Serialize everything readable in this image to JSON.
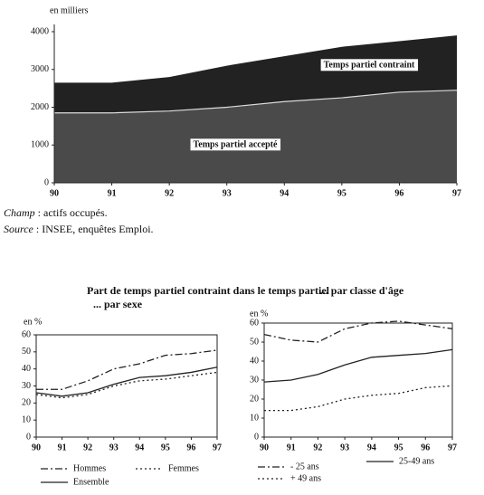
{
  "heading": "Part de temps partiel contraint dans le temps partiel",
  "notes": [
    {
      "label": "Champ",
      "text": ": actifs occupés."
    },
    {
      "label": "Source",
      "text": ": INSEE, enquêtes Emploi."
    }
  ],
  "chart_data": [
    {
      "type": "stacked-area",
      "ylabel": "en milliers",
      "x": [
        90,
        91,
        92,
        93,
        94,
        95,
        96,
        97
      ],
      "xlim": [
        90,
        97
      ],
      "xticks": [
        90,
        91,
        92,
        93,
        94,
        95,
        96,
        97
      ],
      "ylim": [
        0,
        4000
      ],
      "yticks": [
        0,
        1000,
        2000,
        3000,
        4000
      ],
      "series": [
        {
          "name": "Temps partiel accepté",
          "color": "#4a4a4a",
          "values": [
            1850,
            1850,
            1900,
            2000,
            2150,
            2250,
            2400,
            2450
          ]
        },
        {
          "name": "Temps partiel contraint",
          "color": "#222222",
          "values": [
            800,
            800,
            900,
            1100,
            1200,
            1350,
            1350,
            1450
          ]
        }
      ]
    },
    {
      "type": "line",
      "title": "... par sexe",
      "ylabel": "en %",
      "x": [
        90,
        91,
        92,
        93,
        94,
        95,
        96,
        97
      ],
      "xlim": [
        90,
        97
      ],
      "xticks": [
        90,
        91,
        92,
        93,
        94,
        95,
        96,
        97
      ],
      "ylim": [
        0,
        60
      ],
      "yticks": [
        0,
        10,
        20,
        30,
        40,
        50,
        60
      ],
      "series": [
        {
          "name": "Hommes",
          "color": "#222222",
          "dash": "dash-dot",
          "values": [
            28,
            28,
            33,
            40,
            43,
            48,
            49,
            51
          ]
        },
        {
          "name": "Femmes",
          "color": "#222222",
          "dash": "dotted",
          "values": [
            25,
            23,
            25,
            30,
            33,
            34,
            36,
            38
          ]
        },
        {
          "name": "Ensemble",
          "color": "#222222",
          "dash": "solid",
          "values": [
            26,
            24,
            26,
            31,
            35,
            36,
            38,
            41
          ]
        }
      ]
    },
    {
      "type": "line",
      "title": "... par classe d'âge",
      "ylabel": "en %",
      "x": [
        90,
        91,
        92,
        93,
        94,
        95,
        96,
        97
      ],
      "xlim": [
        90,
        97
      ],
      "xticks": [
        90,
        91,
        92,
        93,
        94,
        95,
        96,
        97
      ],
      "ylim": [
        0,
        60
      ],
      "yticks": [
        0,
        10,
        20,
        30,
        40,
        50,
        60
      ],
      "series": [
        {
          "name": "- 25 ans",
          "color": "#222222",
          "dash": "dash-dot",
          "values": [
            54,
            51,
            50,
            57,
            60,
            61,
            59,
            57
          ]
        },
        {
          "name": "+ 49 ans",
          "color": "#222222",
          "dash": "dotted",
          "values": [
            14,
            14,
            16,
            20,
            22,
            23,
            26,
            27
          ]
        },
        {
          "name": "25-49 ans",
          "color": "#222222",
          "dash": "solid",
          "values": [
            29,
            30,
            33,
            38,
            42,
            43,
            44,
            46
          ]
        }
      ]
    }
  ]
}
